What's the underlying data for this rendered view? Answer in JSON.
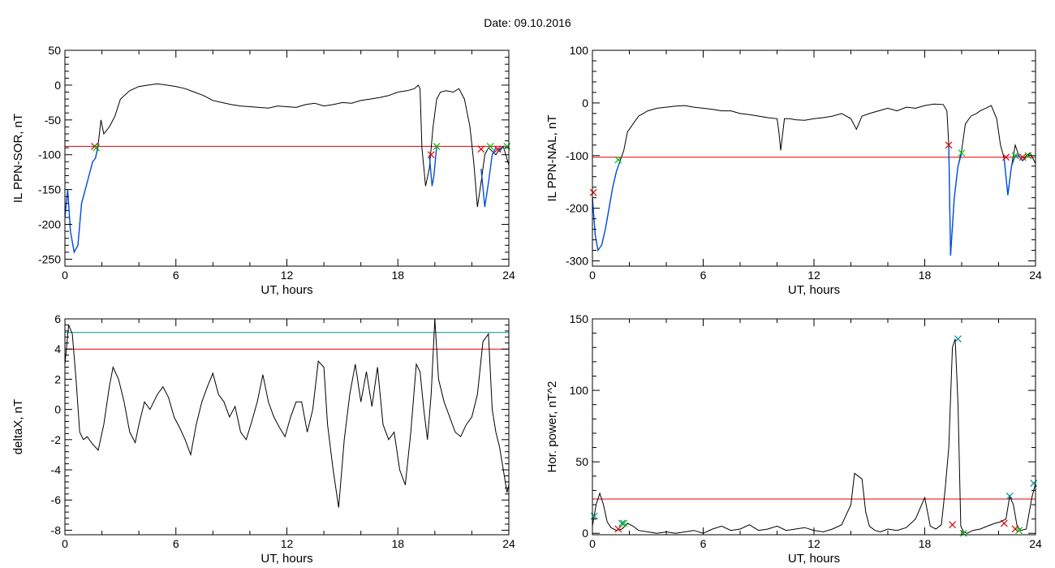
{
  "page": {
    "title": "Date:  09.10.2016"
  },
  "colors": {
    "trace": "#000000",
    "threshold": "#e00000",
    "threshold2": "#008b8b",
    "highlight": "#0050e0",
    "onset_marker": "#e00000",
    "end_marker": "#00c000",
    "peak_marker": "#008b8b"
  },
  "chart_data": [
    {
      "type": "line",
      "ylabel": "IL PPN-SOR, nT",
      "xlabel": "UT, hours",
      "xlim": [
        0,
        24
      ],
      "ylim": [
        -260,
        50
      ],
      "xticks": [
        0,
        6,
        12,
        18,
        24
      ],
      "yticks": [
        50,
        0,
        -50,
        -100,
        -150,
        -200,
        -250
      ],
      "threshold": -88,
      "series": [
        {
          "x": [
            0,
            0.15,
            0.3,
            0.5,
            0.7,
            0.9,
            1.1,
            1.3,
            1.5,
            1.65,
            1.8,
            1.95,
            2.1,
            2.4,
            2.7,
            3,
            3.5,
            4,
            4.5,
            5,
            5.5,
            6,
            6.5,
            7,
            7.5,
            8,
            8.5,
            9,
            9.5,
            10,
            10.5,
            11,
            11.5,
            12,
            12.5,
            13,
            13.5,
            14,
            14.5,
            15,
            15.5,
            16,
            16.5,
            17,
            17.5,
            18,
            18.5,
            18.9,
            19.1,
            19.2,
            19.3,
            19.5,
            19.7,
            19.9,
            20.1,
            20.3,
            20.6,
            21,
            21.3,
            21.6,
            21.9,
            22.1,
            22.3,
            22.5,
            22.7,
            22.9,
            23.1,
            23.3,
            23.5,
            23.7,
            24
          ],
          "y": [
            -190,
            -150,
            -210,
            -240,
            -230,
            -170,
            -150,
            -130,
            -110,
            -105,
            -85,
            -50,
            -70,
            -60,
            -45,
            -20,
            -8,
            -2,
            0,
            2,
            0,
            -2,
            -5,
            -10,
            -15,
            -22,
            -25,
            -28,
            -30,
            -31,
            -32,
            -33,
            -30,
            -31,
            -32,
            -28,
            -26,
            -30,
            -28,
            -25,
            -26,
            -22,
            -20,
            -18,
            -15,
            -10,
            -8,
            -5,
            0,
            -5,
            -90,
            -145,
            -120,
            -60,
            -20,
            -10,
            -8,
            -10,
            -5,
            -20,
            -60,
            -110,
            -175,
            -140,
            -100,
            -90,
            -95,
            -100,
            -92,
            -88,
            -115
          ]
        },
        {
          "name": "active interval 1",
          "x": [
            0,
            0.15,
            0.3,
            0.5,
            0.7,
            0.9,
            1.1,
            1.3,
            1.5,
            1.65,
            1.8
          ],
          "y": [
            -190,
            -150,
            -210,
            -240,
            -230,
            -170,
            -150,
            -130,
            -110,
            -105,
            -88
          ]
        },
        {
          "name": "active interval 2",
          "x": [
            19.7,
            19.85,
            19.95,
            20.1
          ],
          "y": [
            -100,
            -145,
            -130,
            -88
          ]
        },
        {
          "name": "active interval 3",
          "x": [
            22.5,
            22.7,
            22.9,
            23.1,
            23.3,
            23.5,
            23.7
          ],
          "y": [
            -120,
            -175,
            -140,
            -100,
            -90,
            -95,
            -88
          ]
        }
      ],
      "markers": [
        {
          "x": 1.6,
          "y": -88,
          "kind": "onset"
        },
        {
          "x": 1.7,
          "y": -90,
          "kind": "end"
        },
        {
          "x": 19.8,
          "y": -100,
          "kind": "onset"
        },
        {
          "x": 20.1,
          "y": -88,
          "kind": "end"
        },
        {
          "x": 22.5,
          "y": -92,
          "kind": "onset"
        },
        {
          "x": 23.0,
          "y": -88,
          "kind": "end"
        },
        {
          "x": 23.4,
          "y": -92,
          "kind": "onset"
        },
        {
          "x": 23.9,
          "y": -88,
          "kind": "end"
        }
      ]
    },
    {
      "type": "line",
      "ylabel": "IL PPN-NAL, nT",
      "xlabel": "UT, hours",
      "xlim": [
        0,
        24
      ],
      "ylim": [
        -310,
        100
      ],
      "xticks": [
        0,
        6,
        12,
        18,
        24
      ],
      "yticks": [
        100,
        0,
        -100,
        -200,
        -300
      ],
      "threshold": -103,
      "series": [
        {
          "x": [
            0,
            0.15,
            0.3,
            0.5,
            0.7,
            0.9,
            1.1,
            1.3,
            1.5,
            1.7,
            1.9,
            2.2,
            2.5,
            3,
            3.5,
            4,
            4.5,
            5,
            5.5,
            6,
            6.5,
            7,
            7.5,
            8,
            8.5,
            9,
            9.5,
            10,
            10.1,
            10.2,
            10.4,
            10.7,
            11,
            11.5,
            12,
            12.5,
            13,
            13.5,
            14,
            14.3,
            14.6,
            15,
            15.5,
            16,
            16.5,
            17,
            17.5,
            18,
            18.5,
            19,
            19.2,
            19.3,
            19.4,
            19.6,
            19.8,
            20,
            20.2,
            20.5,
            20.8,
            21,
            21.3,
            21.6,
            21.9,
            22.1,
            22.3,
            22.5,
            22.7,
            22.9,
            23.1,
            23.3,
            23.5,
            23.7,
            24
          ],
          "y": [
            -180,
            -250,
            -280,
            -270,
            -240,
            -200,
            -160,
            -130,
            -110,
            -90,
            -55,
            -40,
            -25,
            -15,
            -10,
            -8,
            -6,
            -5,
            -8,
            -10,
            -12,
            -15,
            -15,
            -20,
            -22,
            -25,
            -28,
            -30,
            -55,
            -90,
            -30,
            -30,
            -32,
            -33,
            -30,
            -28,
            -25,
            -20,
            -30,
            -50,
            -25,
            -20,
            -15,
            -10,
            -15,
            -8,
            -10,
            -5,
            -2,
            -3,
            -15,
            -80,
            -290,
            -180,
            -120,
            -90,
            -40,
            -25,
            -20,
            -15,
            -10,
            -5,
            -30,
            -80,
            -105,
            -175,
            -120,
            -80,
            -100,
            -110,
            -100,
            -95,
            -115
          ]
        },
        {
          "name": "active interval 1",
          "x": [
            0,
            0.15,
            0.3,
            0.5,
            0.7,
            0.9,
            1.1,
            1.3,
            1.5
          ],
          "y": [
            -180,
            -250,
            -280,
            -270,
            -240,
            -200,
            -160,
            -130,
            -110
          ]
        },
        {
          "name": "active interval 2",
          "x": [
            19.3,
            19.4,
            19.6,
            19.8,
            20
          ],
          "y": [
            -80,
            -290,
            -180,
            -120,
            -95
          ]
        },
        {
          "name": "active interval 3",
          "x": [
            22.3,
            22.5,
            22.7,
            22.9,
            23.1,
            23.3
          ],
          "y": [
            -105,
            -175,
            -120,
            -100,
            -100,
            -110
          ]
        }
      ],
      "markers": [
        {
          "x": 0.05,
          "y": -170,
          "kind": "onset"
        },
        {
          "x": 1.4,
          "y": -108,
          "kind": "end"
        },
        {
          "x": 19.3,
          "y": -80,
          "kind": "onset"
        },
        {
          "x": 20.0,
          "y": -95,
          "kind": "end"
        },
        {
          "x": 22.4,
          "y": -103,
          "kind": "onset"
        },
        {
          "x": 22.9,
          "y": -100,
          "kind": "end"
        },
        {
          "x": 23.3,
          "y": -103,
          "kind": "onset"
        },
        {
          "x": 23.6,
          "y": -100,
          "kind": "end"
        }
      ]
    },
    {
      "type": "line",
      "ylabel": "deltaX, nT",
      "xlabel": "UT, hours",
      "xlim": [
        0,
        24
      ],
      "ylim": [
        -8.3,
        6
      ],
      "xticks": [
        0,
        6,
        12,
        18,
        24
      ],
      "yticks": [
        6,
        4,
        2,
        0,
        -2,
        -4,
        -6,
        -8
      ],
      "thresholds": [
        {
          "value": 5.1,
          "color": "threshold2"
        },
        {
          "value": 4.0,
          "color": "threshold"
        }
      ],
      "series": [
        {
          "x": [
            0,
            0.2,
            0.4,
            0.6,
            0.8,
            1,
            1.2,
            1.5,
            1.8,
            2.1,
            2.4,
            2.6,
            2.9,
            3.2,
            3.5,
            3.8,
            4,
            4.3,
            4.6,
            5,
            5.3,
            5.6,
            5.9,
            6.2,
            6.5,
            6.8,
            7.1,
            7.4,
            7.7,
            8,
            8.3,
            8.6,
            8.9,
            9.2,
            9.5,
            9.8,
            10.1,
            10.4,
            10.7,
            11,
            11.3,
            11.6,
            11.9,
            12.2,
            12.5,
            12.8,
            13.1,
            13.4,
            13.7,
            14,
            14.2,
            14.5,
            14.8,
            15.1,
            15.4,
            15.7,
            16,
            16.3,
            16.6,
            16.9,
            17.2,
            17.5,
            17.8,
            18.1,
            18.4,
            18.7,
            19,
            19.2,
            19.4,
            19.6,
            19.8,
            20,
            20.2,
            20.5,
            20.8,
            21.1,
            21.4,
            21.7,
            22,
            22.3,
            22.6,
            22.9,
            23.1,
            23.3,
            23.5,
            23.7,
            23.9,
            24
          ],
          "y": [
            3,
            5.6,
            5,
            2,
            -1.5,
            -2,
            -1.8,
            -2.3,
            -2.7,
            -1,
            1.5,
            2.8,
            2,
            0.5,
            -1.5,
            -2.2,
            -1,
            0.5,
            0,
            1,
            1.5,
            0.8,
            -0.5,
            -1.2,
            -2,
            -3,
            -1,
            0.5,
            1.5,
            2.4,
            1,
            0.5,
            -0.5,
            0.2,
            -1.5,
            -2,
            -0.8,
            0.5,
            2.3,
            0.5,
            -0.5,
            -1.2,
            -1.8,
            -0.5,
            0.5,
            0.5,
            -1.5,
            0,
            3.2,
            2.8,
            -1,
            -4,
            -6.5,
            -2,
            1,
            3,
            0.5,
            2.5,
            0.2,
            2.8,
            -1,
            -2,
            -1.5,
            -4,
            -5,
            -1.5,
            3,
            2.5,
            0,
            -2,
            1,
            6,
            2,
            0.5,
            -0.5,
            -1.5,
            -1.8,
            -1,
            -0.5,
            1,
            4.5,
            5,
            0,
            -1.5,
            -2.5,
            -4,
            -5.5,
            -5
          ]
        }
      ]
    },
    {
      "type": "line",
      "ylabel": "Hor. power, nT^2",
      "xlabel": "UT, hours",
      "xlim": [
        0,
        24
      ],
      "ylim": [
        -1,
        150
      ],
      "xticks": [
        0,
        6,
        12,
        18,
        24
      ],
      "yticks": [
        150,
        100,
        50,
        0
      ],
      "threshold": 24,
      "series": [
        {
          "x": [
            0,
            0.2,
            0.4,
            0.6,
            0.8,
            1,
            1.3,
            1.6,
            1.9,
            2.2,
            2.5,
            3,
            3.5,
            4,
            4.5,
            5,
            5.5,
            6,
            6.5,
            7,
            7.5,
            8,
            8.5,
            9,
            9.5,
            10,
            10.5,
            11,
            11.5,
            12,
            12.5,
            13,
            13.5,
            14,
            14.2,
            14.4,
            14.6,
            14.8,
            15,
            15.3,
            15.6,
            16,
            16.5,
            17,
            17.5,
            18,
            18.3,
            18.6,
            18.9,
            19.1,
            19.3,
            19.5,
            19.65,
            19.8,
            19.95,
            20.1,
            20.3,
            20.6,
            21,
            21.4,
            21.8,
            22.1,
            22.4,
            22.6,
            22.8,
            23,
            23.2,
            23.5,
            23.8,
            24
          ],
          "y": [
            5,
            20,
            28,
            20,
            8,
            4,
            2,
            3,
            7,
            5,
            2,
            1,
            0,
            1,
            0,
            1,
            2,
            0,
            3,
            5,
            2,
            3,
            6,
            2,
            3,
            5,
            2,
            3,
            4,
            2,
            1,
            3,
            6,
            20,
            42,
            40,
            38,
            15,
            5,
            2,
            1,
            3,
            2,
            4,
            10,
            25,
            5,
            3,
            6,
            30,
            60,
            130,
            136,
            90,
            5,
            1,
            0,
            2,
            3,
            5,
            7,
            8,
            10,
            26,
            20,
            5,
            2,
            3,
            25,
            35
          ]
        }
      ],
      "markers": [
        {
          "x": 0.1,
          "y": 12,
          "kind": "peak"
        },
        {
          "x": 1.4,
          "y": 3,
          "kind": "onset"
        },
        {
          "x": 1.6,
          "y": 7,
          "kind": "peak"
        },
        {
          "x": 1.7,
          "y": 7,
          "kind": "end"
        },
        {
          "x": 19.5,
          "y": 6,
          "kind": "onset"
        },
        {
          "x": 19.8,
          "y": 136,
          "kind": "peak"
        },
        {
          "x": 20.1,
          "y": 0,
          "kind": "end"
        },
        {
          "x": 22.3,
          "y": 7,
          "kind": "onset"
        },
        {
          "x": 22.6,
          "y": 26,
          "kind": "peak"
        },
        {
          "x": 22.9,
          "y": 3,
          "kind": "onset"
        },
        {
          "x": 23.1,
          "y": 2,
          "kind": "end"
        },
        {
          "x": 23.9,
          "y": 35,
          "kind": "peak"
        }
      ]
    }
  ]
}
